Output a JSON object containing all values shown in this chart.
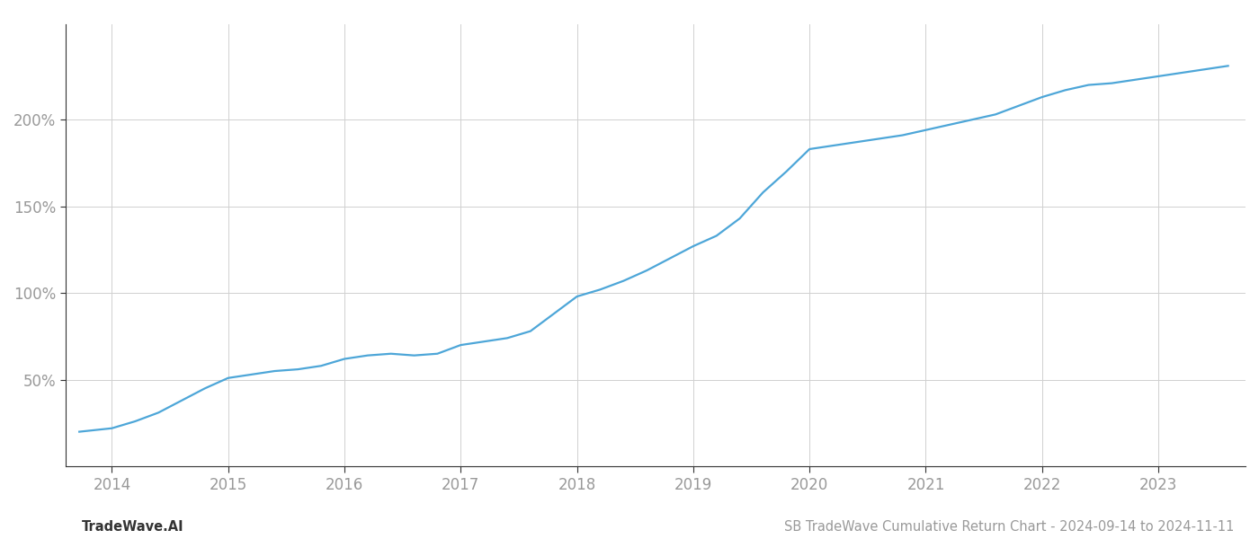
{
  "title": "SB TradeWave Cumulative Return Chart - 2024-09-14 to 2024-11-11",
  "footer_left": "TradeWave.AI",
  "line_color": "#4da6d8",
  "background_color": "#ffffff",
  "grid_color": "#d0d0d0",
  "x_values": [
    2013.72,
    2014.0,
    2014.2,
    2014.4,
    2014.6,
    2014.8,
    2015.0,
    2015.2,
    2015.4,
    2015.6,
    2015.8,
    2016.0,
    2016.2,
    2016.4,
    2016.6,
    2016.8,
    2017.0,
    2017.2,
    2017.4,
    2017.6,
    2017.8,
    2018.0,
    2018.2,
    2018.4,
    2018.6,
    2018.8,
    2019.0,
    2019.2,
    2019.4,
    2019.6,
    2019.8,
    2020.0,
    2020.2,
    2020.4,
    2020.6,
    2020.8,
    2021.0,
    2021.2,
    2021.4,
    2021.6,
    2021.8,
    2022.0,
    2022.2,
    2022.4,
    2022.6,
    2022.8,
    2023.0,
    2023.2,
    2023.4,
    2023.6
  ],
  "y_values": [
    20,
    22,
    26,
    31,
    38,
    45,
    51,
    53,
    55,
    56,
    58,
    62,
    64,
    65,
    64,
    65,
    70,
    72,
    74,
    78,
    88,
    98,
    102,
    107,
    113,
    120,
    127,
    133,
    143,
    158,
    170,
    183,
    185,
    187,
    189,
    191,
    194,
    197,
    200,
    203,
    208,
    213,
    217,
    220,
    221,
    223,
    225,
    227,
    229,
    231
  ],
  "xlim": [
    2013.6,
    2023.75
  ],
  "ylim": [
    0,
    255
  ],
  "yticks": [
    50,
    100,
    150,
    200
  ],
  "xticks": [
    2014,
    2015,
    2016,
    2017,
    2018,
    2019,
    2020,
    2021,
    2022,
    2023
  ],
  "line_width": 1.6,
  "title_fontsize": 10.5,
  "footer_fontsize": 10.5,
  "tick_fontsize": 12,
  "tick_color": "#999999",
  "spine_color": "#333333"
}
